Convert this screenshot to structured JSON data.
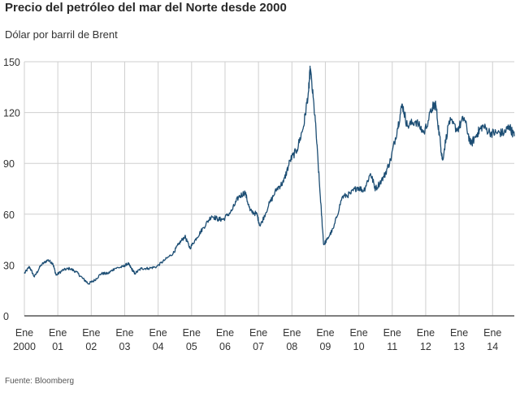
{
  "chart_data": {
    "type": "line",
    "title": "Precio del petróleo del mar del Norte desde 2000",
    "subtitle": "Dólar por barril de Brent",
    "source": "Fuente: Bloomberg",
    "ylim": [
      0,
      150
    ],
    "yticks": [
      "0",
      "30",
      "60",
      "90",
      "120",
      "150"
    ],
    "xlim": [
      2000.0,
      2014.65
    ],
    "xticks": [
      {
        "top": "Ene",
        "bottom": "2000"
      },
      {
        "top": "Ene",
        "bottom": "01"
      },
      {
        "top": "Ene",
        "bottom": "02"
      },
      {
        "top": "Ene",
        "bottom": "03"
      },
      {
        "top": "Ene",
        "bottom": "04"
      },
      {
        "top": "Ene",
        "bottom": "05"
      },
      {
        "top": "Ene",
        "bottom": "06"
      },
      {
        "top": "Ene",
        "bottom": "07"
      },
      {
        "top": "Ene",
        "bottom": "08"
      },
      {
        "top": "Ene",
        "bottom": "09"
      },
      {
        "top": "Ene",
        "bottom": "10"
      },
      {
        "top": "Ene",
        "bottom": "11"
      },
      {
        "top": "Ene",
        "bottom": "12"
      },
      {
        "top": "Ene",
        "bottom": "13"
      },
      {
        "top": "Ene",
        "bottom": "14"
      }
    ],
    "line_color": "#1d4e74",
    "series": [
      {
        "name": "Brent",
        "points": [
          [
            2000.0,
            25
          ],
          [
            2000.15,
            29
          ],
          [
            2000.3,
            23
          ],
          [
            2000.5,
            30
          ],
          [
            2000.7,
            33
          ],
          [
            2000.85,
            31
          ],
          [
            2000.95,
            24
          ],
          [
            2001.15,
            27
          ],
          [
            2001.35,
            28
          ],
          [
            2001.55,
            26
          ],
          [
            2001.75,
            22
          ],
          [
            2001.92,
            19
          ],
          [
            2002.1,
            21
          ],
          [
            2002.3,
            25
          ],
          [
            2002.5,
            25
          ],
          [
            2002.7,
            28
          ],
          [
            2002.95,
            29
          ],
          [
            2003.1,
            31
          ],
          [
            2003.2,
            28
          ],
          [
            2003.3,
            25
          ],
          [
            2003.5,
            28
          ],
          [
            2003.7,
            28
          ],
          [
            2003.95,
            29
          ],
          [
            2004.2,
            33
          ],
          [
            2004.45,
            37
          ],
          [
            2004.6,
            42
          ],
          [
            2004.8,
            47
          ],
          [
            2004.95,
            40
          ],
          [
            2005.15,
            46
          ],
          [
            2005.35,
            52
          ],
          [
            2005.6,
            59
          ],
          [
            2005.8,
            57
          ],
          [
            2005.95,
            57
          ],
          [
            2006.2,
            62
          ],
          [
            2006.4,
            70
          ],
          [
            2006.6,
            73
          ],
          [
            2006.75,
            62
          ],
          [
            2006.95,
            60
          ],
          [
            2007.05,
            53
          ],
          [
            2007.3,
            65
          ],
          [
            2007.55,
            75
          ],
          [
            2007.75,
            79
          ],
          [
            2007.95,
            92
          ],
          [
            2008.15,
            98
          ],
          [
            2008.35,
            112
          ],
          [
            2008.5,
            133
          ],
          [
            2008.55,
            146
          ],
          [
            2008.7,
            115
          ],
          [
            2008.85,
            70
          ],
          [
            2008.95,
            42
          ],
          [
            2009.05,
            45
          ],
          [
            2009.25,
            52
          ],
          [
            2009.5,
            70
          ],
          [
            2009.75,
            72
          ],
          [
            2009.95,
            76
          ],
          [
            2010.15,
            74
          ],
          [
            2010.35,
            84
          ],
          [
            2010.5,
            75
          ],
          [
            2010.75,
            82
          ],
          [
            2010.95,
            92
          ],
          [
            2011.15,
            110
          ],
          [
            2011.3,
            125
          ],
          [
            2011.45,
            112
          ],
          [
            2011.7,
            115
          ],
          [
            2011.95,
            108
          ],
          [
            2012.2,
            123
          ],
          [
            2012.3,
            125
          ],
          [
            2012.45,
            100
          ],
          [
            2012.5,
            92
          ],
          [
            2012.7,
            115
          ],
          [
            2012.95,
            110
          ],
          [
            2013.15,
            117
          ],
          [
            2013.35,
            101
          ],
          [
            2013.55,
            108
          ],
          [
            2013.7,
            112
          ],
          [
            2013.95,
            108
          ],
          [
            2014.15,
            108
          ],
          [
            2014.35,
            108
          ],
          [
            2014.5,
            112
          ],
          [
            2014.65,
            106
          ]
        ]
      }
    ]
  }
}
